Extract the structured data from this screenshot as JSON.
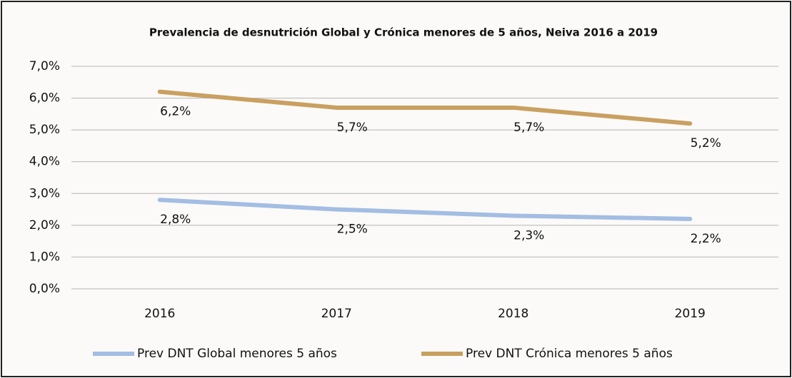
{
  "chart_data": {
    "type": "line",
    "title": "Prevalencia de desnutrición Global y Crónica menores de 5 años, Neiva 2016 a 2019",
    "categories": [
      "2016",
      "2017",
      "2018",
      "2019"
    ],
    "series": [
      {
        "name": "Prev DNT Global menores 5 años",
        "color": "#a3bde3",
        "values": [
          2.8,
          2.5,
          2.3,
          2.2
        ],
        "value_labels": [
          "2,8%",
          "2,5%",
          "2,3%",
          "2,2%"
        ]
      },
      {
        "name": "Prev DNT Crónica menores 5 años",
        "color": "#c9a060",
        "values": [
          6.2,
          5.7,
          5.7,
          5.2
        ],
        "value_labels": [
          "6,2%",
          "5,7%",
          "5,7%",
          "5,2%"
        ]
      }
    ],
    "ylim": [
      0,
      7
    ],
    "yticks": [
      {
        "value": 0,
        "label": "0,0%"
      },
      {
        "value": 1,
        "label": "1,0%"
      },
      {
        "value": 2,
        "label": "2,0%"
      },
      {
        "value": 3,
        "label": "3,0%"
      },
      {
        "value": 4,
        "label": "4,0%"
      },
      {
        "value": 5,
        "label": "5,0%"
      },
      {
        "value": 6,
        "label": "6,0%"
      },
      {
        "value": 7,
        "label": "7,0%"
      }
    ],
    "grid": true
  }
}
